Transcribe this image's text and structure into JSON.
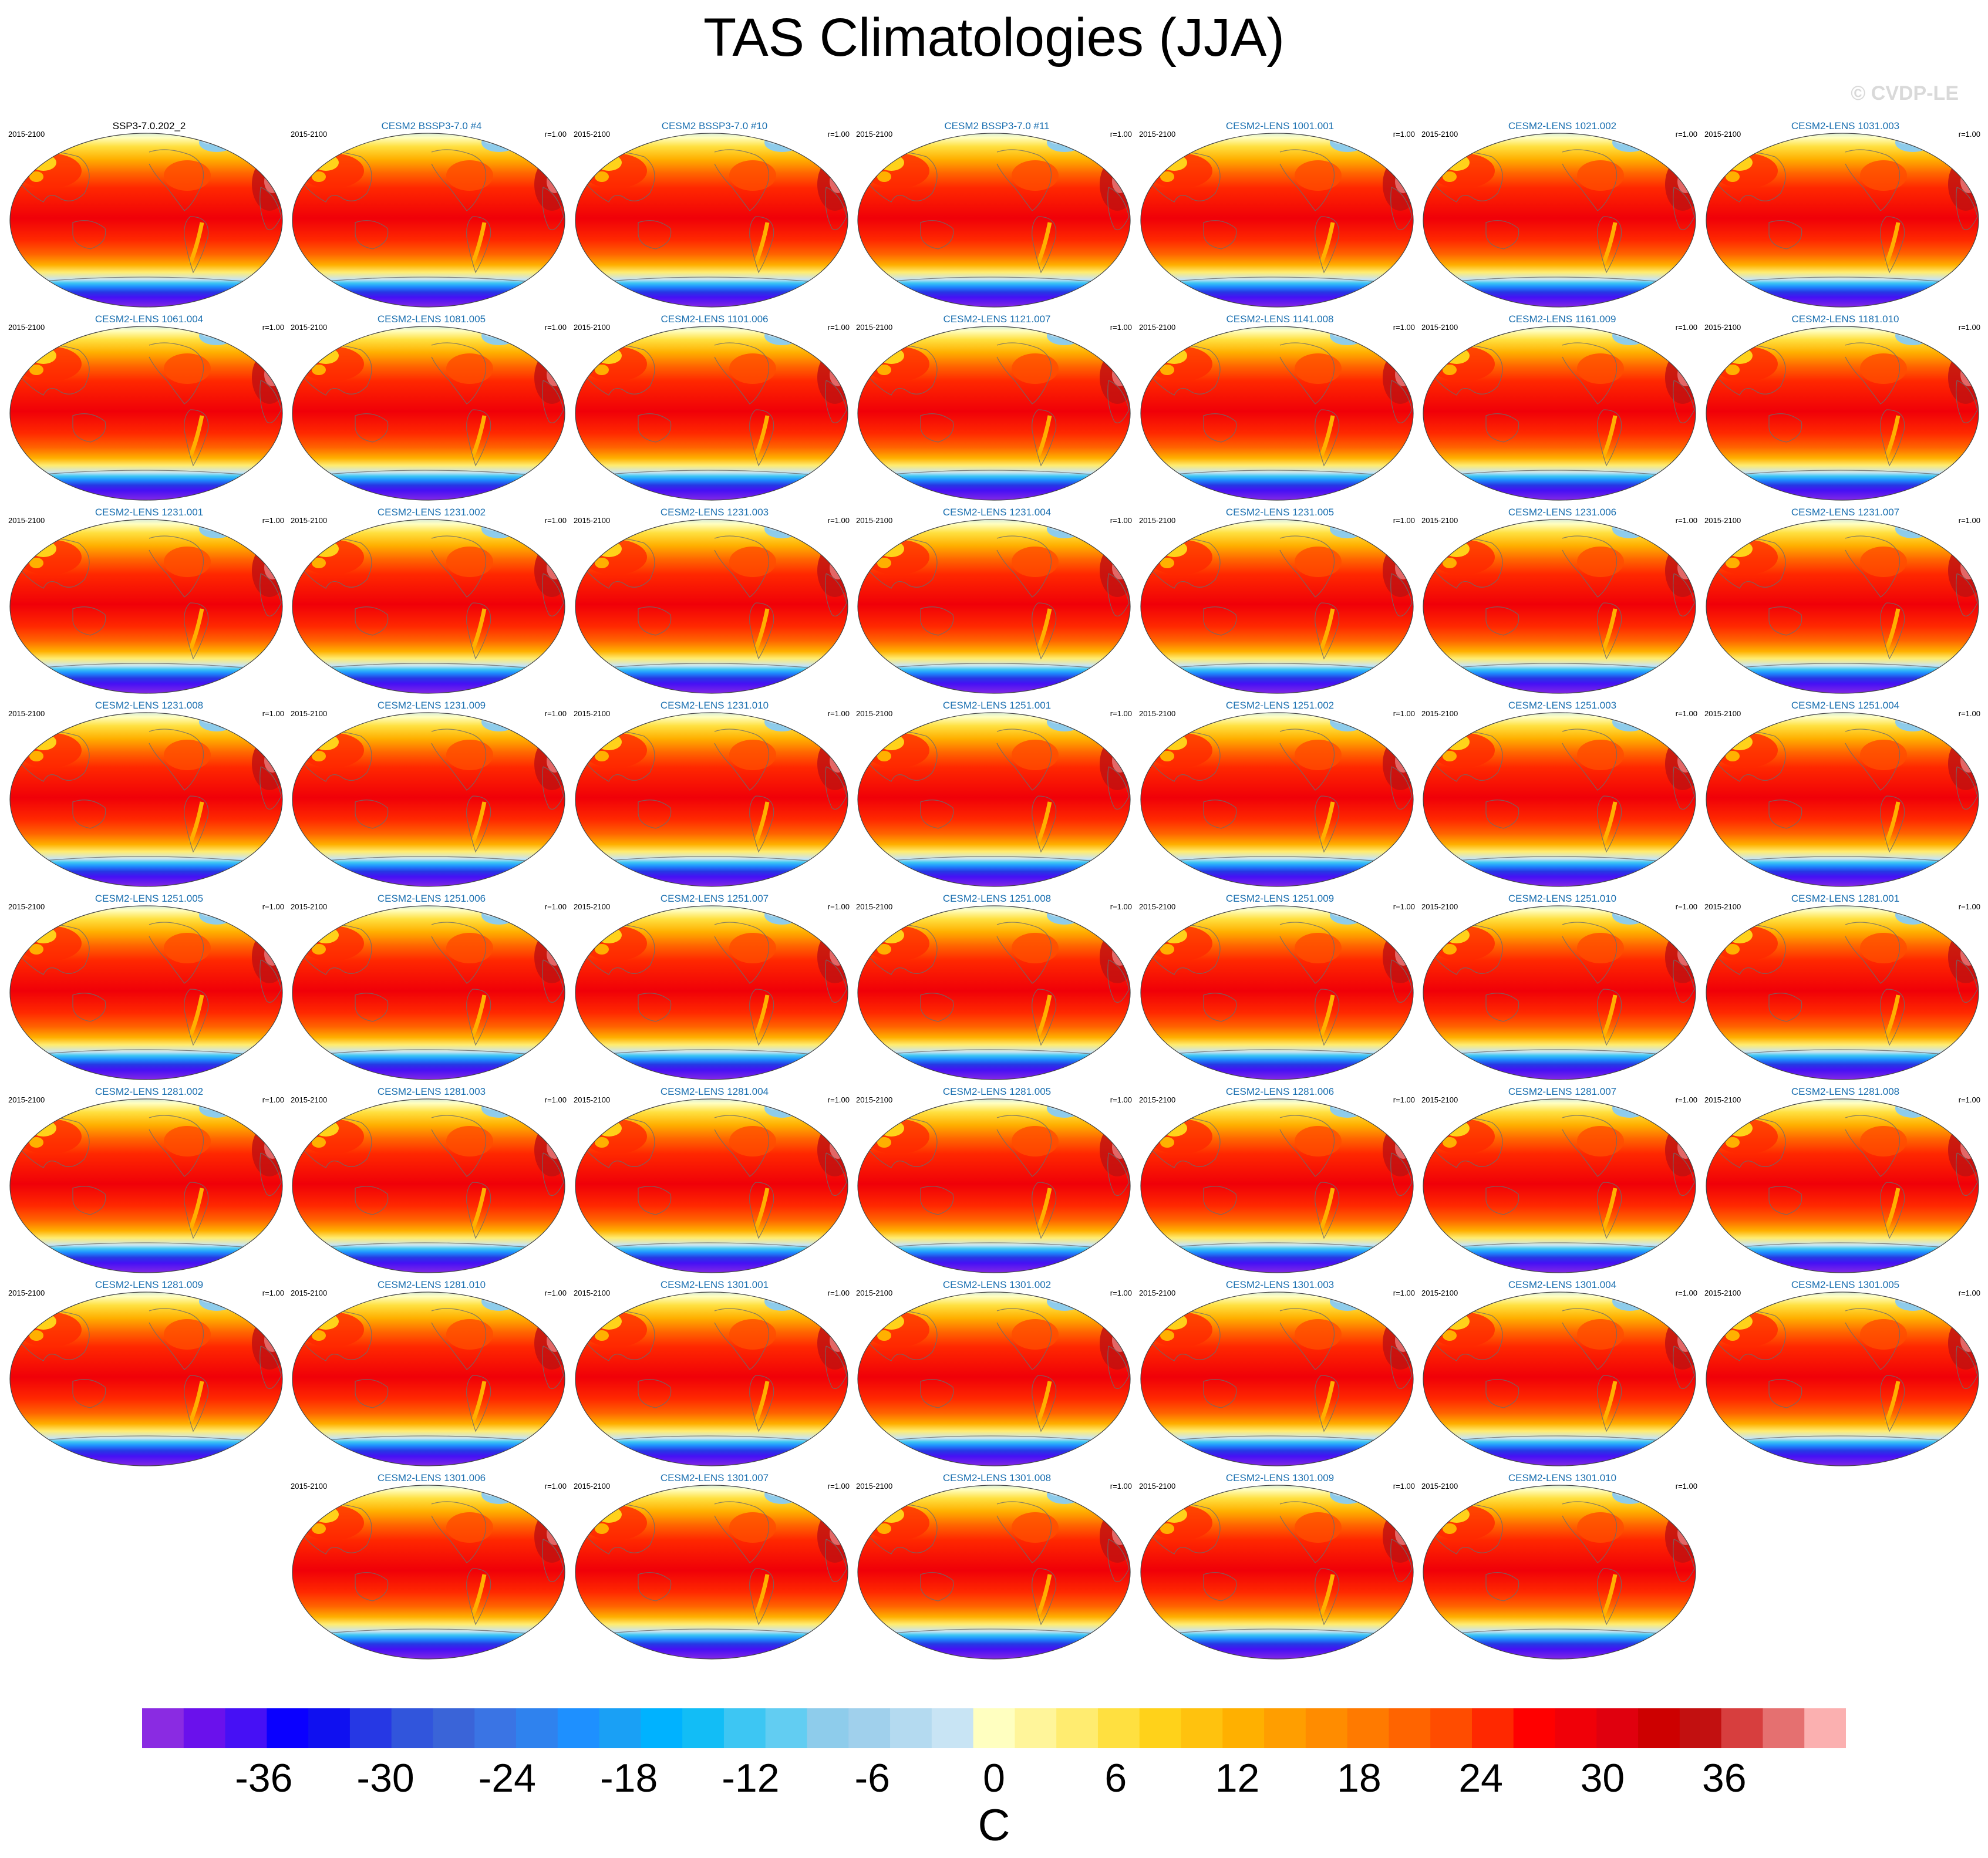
{
  "title": "TAS Climatologies (JJA)",
  "watermark": "© CVDP-LE",
  "panels": [
    {
      "title": "SSP3-7.0.202_2",
      "years": "2015-2100",
      "r": "",
      "obs": true
    },
    {
      "title": "CESM2 BSSP3-7.0 #4",
      "years": "2015-2100",
      "r": "r=1.00"
    },
    {
      "title": "CESM2 BSSP3-7.0 #10",
      "years": "2015-2100",
      "r": "r=1.00"
    },
    {
      "title": "CESM2 BSSP3-7.0 #11",
      "years": "2015-2100",
      "r": "r=1.00"
    },
    {
      "title": "CESM2-LENS 1001.001",
      "years": "2015-2100",
      "r": "r=1.00"
    },
    {
      "title": "CESM2-LENS 1021.002",
      "years": "2015-2100",
      "r": "r=1.00"
    },
    {
      "title": "CESM2-LENS 1031.003",
      "years": "2015-2100",
      "r": "r=1.00"
    },
    {
      "title": "CESM2-LENS 1061.004",
      "years": "2015-2100",
      "r": "r=1.00"
    },
    {
      "title": "CESM2-LENS 1081.005",
      "years": "2015-2100",
      "r": "r=1.00"
    },
    {
      "title": "CESM2-LENS 1101.006",
      "years": "2015-2100",
      "r": "r=1.00"
    },
    {
      "title": "CESM2-LENS 1121.007",
      "years": "2015-2100",
      "r": "r=1.00"
    },
    {
      "title": "CESM2-LENS 1141.008",
      "years": "2015-2100",
      "r": "r=1.00"
    },
    {
      "title": "CESM2-LENS 1161.009",
      "years": "2015-2100",
      "r": "r=1.00"
    },
    {
      "title": "CESM2-LENS 1181.010",
      "years": "2015-2100",
      "r": "r=1.00"
    },
    {
      "title": "CESM2-LENS 1231.001",
      "years": "2015-2100",
      "r": "r=1.00"
    },
    {
      "title": "CESM2-LENS 1231.002",
      "years": "2015-2100",
      "r": "r=1.00"
    },
    {
      "title": "CESM2-LENS 1231.003",
      "years": "2015-2100",
      "r": "r=1.00"
    },
    {
      "title": "CESM2-LENS 1231.004",
      "years": "2015-2100",
      "r": "r=1.00"
    },
    {
      "title": "CESM2-LENS 1231.005",
      "years": "2015-2100",
      "r": "r=1.00"
    },
    {
      "title": "CESM2-LENS 1231.006",
      "years": "2015-2100",
      "r": "r=1.00"
    },
    {
      "title": "CESM2-LENS 1231.007",
      "years": "2015-2100",
      "r": "r=1.00"
    },
    {
      "title": "CESM2-LENS 1231.008",
      "years": "2015-2100",
      "r": "r=1.00"
    },
    {
      "title": "CESM2-LENS 1231.009",
      "years": "2015-2100",
      "r": "r=1.00"
    },
    {
      "title": "CESM2-LENS 1231.010",
      "years": "2015-2100",
      "r": "r=1.00"
    },
    {
      "title": "CESM2-LENS 1251.001",
      "years": "2015-2100",
      "r": "r=1.00"
    },
    {
      "title": "CESM2-LENS 1251.002",
      "years": "2015-2100",
      "r": "r=1.00"
    },
    {
      "title": "CESM2-LENS 1251.003",
      "years": "2015-2100",
      "r": "r=1.00"
    },
    {
      "title": "CESM2-LENS 1251.004",
      "years": "2015-2100",
      "r": "r=1.00"
    },
    {
      "title": "CESM2-LENS 1251.005",
      "years": "2015-2100",
      "r": "r=1.00"
    },
    {
      "title": "CESM2-LENS 1251.006",
      "years": "2015-2100",
      "r": "r=1.00"
    },
    {
      "title": "CESM2-LENS 1251.007",
      "years": "2015-2100",
      "r": "r=1.00"
    },
    {
      "title": "CESM2-LENS 1251.008",
      "years": "2015-2100",
      "r": "r=1.00"
    },
    {
      "title": "CESM2-LENS 1251.009",
      "years": "2015-2100",
      "r": "r=1.00"
    },
    {
      "title": "CESM2-LENS 1251.010",
      "years": "2015-2100",
      "r": "r=1.00"
    },
    {
      "title": "CESM2-LENS 1281.001",
      "years": "2015-2100",
      "r": "r=1.00"
    },
    {
      "title": "CESM2-LENS 1281.002",
      "years": "2015-2100",
      "r": "r=1.00"
    },
    {
      "title": "CESM2-LENS 1281.003",
      "years": "2015-2100",
      "r": "r=1.00"
    },
    {
      "title": "CESM2-LENS 1281.004",
      "years": "2015-2100",
      "r": "r=1.00"
    },
    {
      "title": "CESM2-LENS 1281.005",
      "years": "2015-2100",
      "r": "r=1.00"
    },
    {
      "title": "CESM2-LENS 1281.006",
      "years": "2015-2100",
      "r": "r=1.00"
    },
    {
      "title": "CESM2-LENS 1281.007",
      "years": "2015-2100",
      "r": "r=1.00"
    },
    {
      "title": "CESM2-LENS 1281.008",
      "years": "2015-2100",
      "r": "r=1.00"
    },
    {
      "title": "CESM2-LENS 1281.009",
      "years": "2015-2100",
      "r": "r=1.00"
    },
    {
      "title": "CESM2-LENS 1281.010",
      "years": "2015-2100",
      "r": "r=1.00"
    },
    {
      "title": "CESM2-LENS 1301.001",
      "years": "2015-2100",
      "r": "r=1.00"
    },
    {
      "title": "CESM2-LENS 1301.002",
      "years": "2015-2100",
      "r": "r=1.00"
    },
    {
      "title": "CESM2-LENS 1301.003",
      "years": "2015-2100",
      "r": "r=1.00"
    },
    {
      "title": "CESM2-LENS 1301.004",
      "years": "2015-2100",
      "r": "r=1.00"
    },
    {
      "title": "CESM2-LENS 1301.005",
      "years": "2015-2100",
      "r": "r=1.00"
    },
    {
      "title": "CESM2-LENS 1301.006",
      "years": "2015-2100",
      "r": "r=1.00"
    },
    {
      "title": "CESM2-LENS 1301.007",
      "years": "2015-2100",
      "r": "r=1.00"
    },
    {
      "title": "CESM2-LENS 1301.008",
      "years": "2015-2100",
      "r": "r=1.00"
    },
    {
      "title": "CESM2-LENS 1301.009",
      "years": "2015-2100",
      "r": "r=1.00"
    },
    {
      "title": "CESM2-LENS 1301.010",
      "years": "2015-2100",
      "r": "r=1.00"
    }
  ],
  "colorbar": {
    "unit": "C",
    "min": -42,
    "max": 42,
    "step": 2,
    "tick_labels": [
      "-36",
      "-30",
      "-24",
      "-18",
      "-12",
      "-6",
      "0",
      "6",
      "12",
      "18",
      "24",
      "30",
      "36"
    ],
    "colors": [
      "#8a2be2",
      "#6a11ec",
      "#4610f5",
      "#0a00ff",
      "#0f10f0",
      "#2638e4",
      "#3155dc",
      "#3a64d8",
      "#3a74e4",
      "#2f82ee",
      "#1e90ff",
      "#1aa0f5",
      "#00b2ff",
      "#12bdf6",
      "#3dc6f3",
      "#62cdf2",
      "#8ecceb",
      "#a0d0ec",
      "#b4daf0",
      "#c8e4f4",
      "#ffffc0",
      "#fff59a",
      "#ffec70",
      "#ffe040",
      "#ffd21a",
      "#ffc20e",
      "#ffb000",
      "#ff9e00",
      "#ff8c00",
      "#ff7a00",
      "#ff6400",
      "#ff4c00",
      "#ff2800",
      "#ff0000",
      "#f00008",
      "#e0000e",
      "#cd0000",
      "#c21010",
      "#d73e3e",
      "#e57070",
      "#fbb0b0"
    ]
  }
}
